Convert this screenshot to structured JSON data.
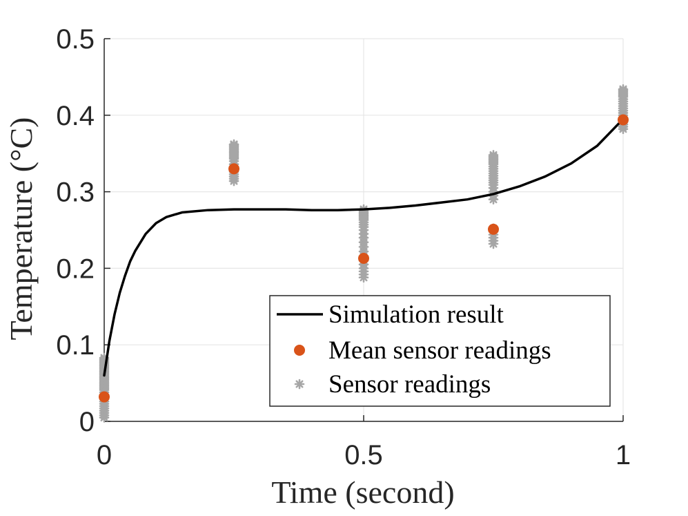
{
  "chart_data": {
    "type": "line",
    "title": "",
    "xlabel": "Time (second)",
    "ylabel": "Temperature (°C)",
    "xlim": [
      0,
      1
    ],
    "ylim": [
      0,
      0.5
    ],
    "grid": true,
    "legend_position": "bottom-right",
    "x_ticks": [
      0,
      0.5,
      1
    ],
    "x_tick_labels": [
      "0",
      "0.5",
      "1"
    ],
    "y_ticks": [
      0,
      0.1,
      0.2,
      0.3,
      0.4,
      0.5
    ],
    "y_tick_labels": [
      "0",
      "0.1",
      "0.2",
      "0.3",
      "0.4",
      "0.5"
    ],
    "series": [
      {
        "name": "Simulation result",
        "kind": "line",
        "color": "#000000",
        "x": [
          0,
          0.01,
          0.02,
          0.03,
          0.04,
          0.05,
          0.06,
          0.08,
          0.1,
          0.12,
          0.15,
          0.2,
          0.25,
          0.3,
          0.35,
          0.4,
          0.45,
          0.5,
          0.55,
          0.6,
          0.65,
          0.7,
          0.75,
          0.8,
          0.85,
          0.9,
          0.95,
          1.0
        ],
        "y": [
          0.06,
          0.105,
          0.14,
          0.168,
          0.19,
          0.209,
          0.223,
          0.245,
          0.259,
          0.267,
          0.273,
          0.276,
          0.277,
          0.277,
          0.277,
          0.276,
          0.276,
          0.277,
          0.279,
          0.282,
          0.286,
          0.29,
          0.297,
          0.307,
          0.32,
          0.337,
          0.36,
          0.395
        ]
      },
      {
        "name": "Mean sensor readings",
        "kind": "scatter",
        "color": "#d95319",
        "x": [
          0,
          0.25,
          0.5,
          0.75,
          1.0
        ],
        "y": [
          0.032,
          0.33,
          0.213,
          0.251,
          0.394
        ]
      },
      {
        "name": "Sensor readings",
        "kind": "scatter",
        "color": "#a6a6a6",
        "x": [
          0,
          0,
          0,
          0,
          0,
          0,
          0,
          0,
          0,
          0,
          0,
          0,
          0,
          0,
          0,
          0,
          0,
          0,
          0,
          0,
          0,
          0,
          0,
          0,
          0,
          0,
          0,
          0,
          0,
          0,
          0,
          0,
          0,
          0,
          0.25,
          0.25,
          0.25,
          0.25,
          0.25,
          0.25,
          0.25,
          0.25,
          0.25,
          0.25,
          0.25,
          0.25,
          0.25,
          0.25,
          0.25,
          0.25,
          0.25,
          0.25,
          0.25,
          0.25,
          0.5,
          0.5,
          0.5,
          0.5,
          0.5,
          0.5,
          0.5,
          0.5,
          0.5,
          0.5,
          0.5,
          0.5,
          0.5,
          0.5,
          0.5,
          0.5,
          0.5,
          0.5,
          0.5,
          0.5,
          0.5,
          0.5,
          0.5,
          0.5,
          0.75,
          0.75,
          0.75,
          0.75,
          0.75,
          0.75,
          0.75,
          0.75,
          0.75,
          0.75,
          0.75,
          0.75,
          0.75,
          0.75,
          0.75,
          0.75,
          0.75,
          0.75,
          0.75,
          0.75,
          0.75,
          0.75,
          0.75,
          0.75,
          0.75,
          0.75,
          1,
          1,
          1,
          1,
          1,
          1,
          1,
          1,
          1,
          1,
          1,
          1,
          1,
          1,
          1,
          1,
          1,
          1,
          1,
          1
        ],
        "y": [
          0.005,
          0.008,
          0.011,
          0.014,
          0.017,
          0.02,
          0.023,
          0.026,
          0.029,
          0.032,
          0.035,
          0.038,
          0.041,
          0.043,
          0.045,
          0.047,
          0.049,
          0.051,
          0.053,
          0.055,
          0.057,
          0.059,
          0.061,
          0.063,
          0.065,
          0.067,
          0.069,
          0.071,
          0.073,
          0.075,
          0.077,
          0.079,
          0.081,
          0.083,
          0.314,
          0.317,
          0.32,
          0.323,
          0.326,
          0.329,
          0.333,
          0.336,
          0.34,
          0.343,
          0.345,
          0.347,
          0.349,
          0.351,
          0.353,
          0.355,
          0.357,
          0.359,
          0.361,
          0.362,
          0.188,
          0.192,
          0.196,
          0.2,
          0.205,
          0.21,
          0.216,
          0.222,
          0.228,
          0.234,
          0.24,
          0.245,
          0.25,
          0.254,
          0.257,
          0.26,
          0.263,
          0.265,
          0.267,
          0.269,
          0.271,
          0.273,
          0.275,
          0.277,
          0.232,
          0.236,
          0.24,
          0.244,
          0.248,
          0.252,
          0.29,
          0.295,
          0.3,
          0.305,
          0.309,
          0.312,
          0.315,
          0.318,
          0.321,
          0.324,
          0.327,
          0.33,
          0.333,
          0.336,
          0.338,
          0.34,
          0.342,
          0.344,
          0.346,
          0.348,
          0.382,
          0.385,
          0.388,
          0.391,
          0.394,
          0.397,
          0.4,
          0.403,
          0.406,
          0.409,
          0.412,
          0.415,
          0.418,
          0.421,
          0.424,
          0.426,
          0.428,
          0.43,
          0.432,
          0.434
        ]
      }
    ]
  }
}
